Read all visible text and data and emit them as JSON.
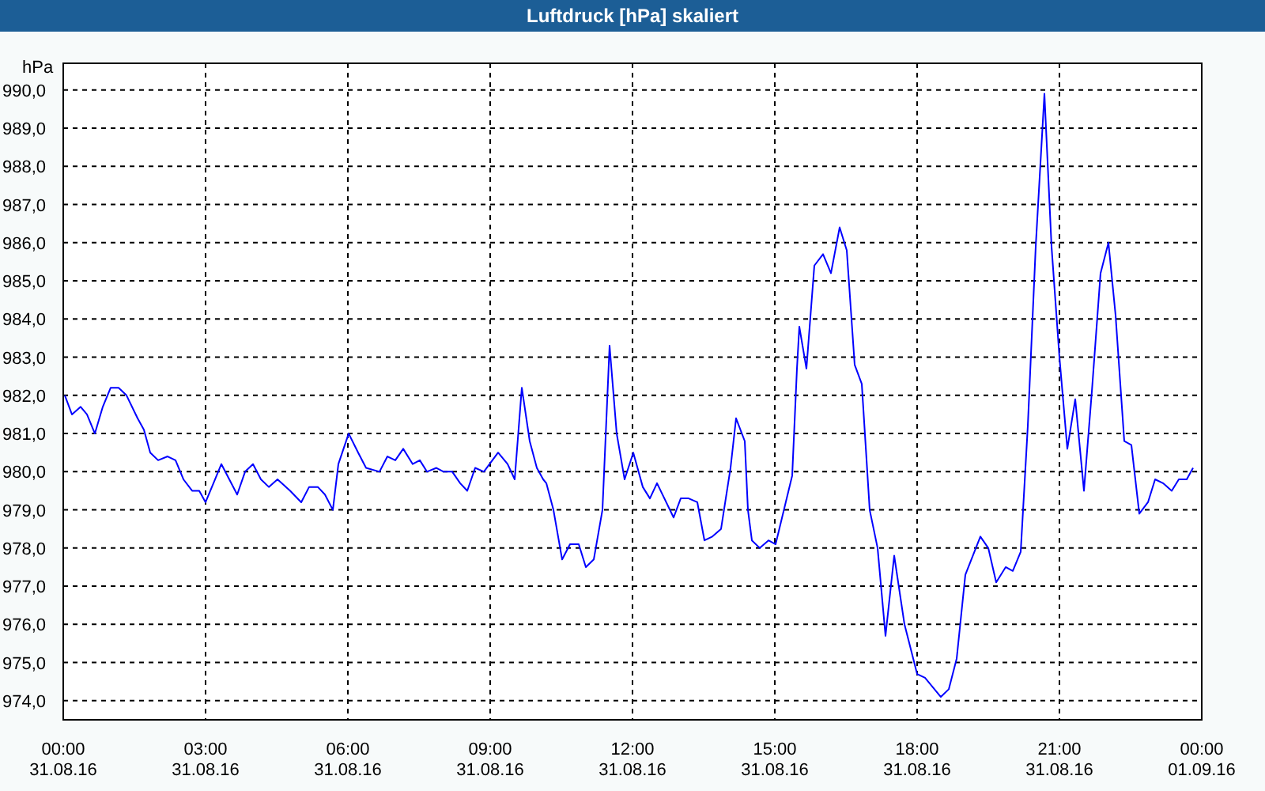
{
  "chart_data": {
    "type": "line",
    "title": "Luftdruck [hPa] skaliert",
    "ylabel": "hPa",
    "xlim": [
      "--08-31T00:00",
      "--09-01T00:00"
    ],
    "xticks": [
      {
        "value": "--08-31T00:00",
        "label": "00:00\n31.08.16"
      },
      {
        "value": "--08-31T03:00",
        "label": "03:00\n31.08.16"
      },
      {
        "value": "--08-31T06:00",
        "label": "06:00\n31.08.16"
      },
      {
        "value": "--08-31T09:00",
        "label": "09:00\n31.08.16"
      },
      {
        "value": "--08-31T12:00",
        "label": "12:00\n31.08.16"
      },
      {
        "value": "--08-31T15:00",
        "label": "15:00\n31.08.16"
      },
      {
        "value": "--08-31T18:00",
        "label": "18:00\n31.08.16"
      },
      {
        "value": "--08-31T21:00",
        "label": "21:00\n31.08.16"
      },
      {
        "value": "--09-01T00:00",
        "label": "00:00\n01.09.16"
      }
    ],
    "ylim": [
      973.5,
      990.7
    ],
    "yticks": [
      {
        "value": 974,
        "label": "974,0"
      },
      {
        "value": 975,
        "label": "975,0"
      },
      {
        "value": 976,
        "label": "976,0"
      },
      {
        "value": 977,
        "label": "977,0"
      },
      {
        "value": 978,
        "label": "978,0"
      },
      {
        "value": 979,
        "label": "979,0"
      },
      {
        "value": 980,
        "label": "980,0"
      },
      {
        "value": 981,
        "label": "981,0"
      },
      {
        "value": 982,
        "label": "982,0"
      },
      {
        "value": 983,
        "label": "983,0"
      },
      {
        "value": 984,
        "label": "984,0"
      },
      {
        "value": 985,
        "label": "985,0"
      },
      {
        "value": 986,
        "label": "986,0"
      },
      {
        "value": 987,
        "label": "987,0"
      },
      {
        "value": 988,
        "label": "988,0"
      },
      {
        "value": 989,
        "label": "989,0"
      },
      {
        "value": 990,
        "label": "990,0"
      }
    ],
    "grid": true,
    "series": [
      {
        "color": "#0000ff",
        "x": [
          "--08-31T00:02",
          "--08-31T00:11",
          "--08-31T00:22",
          "--08-31T00:30",
          "--08-31T00:40",
          "--08-31T00:50",
          "--08-31T01:00",
          "--08-31T01:10",
          "--08-31T01:20",
          "--08-31T01:34",
          "--08-31T01:42",
          "--08-31T01:50",
          "--08-31T02:00",
          "--08-31T02:12",
          "--08-31T02:22",
          "--08-31T02:32",
          "--08-31T02:43",
          "--08-31T02:52",
          "--08-31T03:00",
          "--08-31T03:10",
          "--08-31T03:20",
          "--08-31T03:30",
          "--08-31T03:40",
          "--08-31T03:50",
          "--08-31T04:00",
          "--08-31T04:10",
          "--08-31T04:20",
          "--08-31T04:31",
          "--08-31T04:47",
          "--08-31T05:01",
          "--08-31T05:11",
          "--08-31T05:22",
          "--08-31T05:31",
          "--08-31T05:41",
          "--08-31T05:48",
          "--08-31T06:01",
          "--08-31T06:13",
          "--08-31T06:23",
          "--08-31T06:40",
          "--08-31T06:50",
          "--08-31T07:00",
          "--08-31T07:10",
          "--08-31T07:22",
          "--08-31T07:31",
          "--08-31T07:40",
          "--08-31T07:52",
          "--08-31T08:01",
          "--08-31T08:12",
          "--08-31T08:22",
          "--08-31T08:31",
          "--08-31T08:41",
          "--08-31T08:52",
          "--08-31T09:10",
          "--08-31T09:22",
          "--08-31T09:31",
          "--08-31T09:40",
          "--08-31T09:50",
          "--08-31T09:59",
          "--08-31T10:07",
          "--08-31T10:11",
          "--08-31T10:20",
          "--08-31T10:31",
          "--08-31T10:41",
          "--08-31T10:52",
          "--08-31T11:01",
          "--08-31T11:11",
          "--08-31T11:22",
          "--08-31T11:31",
          "--08-31T11:40",
          "--08-31T11:50",
          "--08-31T12:01",
          "--08-31T12:13",
          "--08-31T12:22",
          "--08-31T12:31",
          "--08-31T12:52",
          "--08-31T13:01",
          "--08-31T13:11",
          "--08-31T13:22",
          "--08-31T13:31",
          "--08-31T13:41",
          "--08-31T13:52",
          "--08-31T14:04",
          "--08-31T14:11",
          "--08-31T14:22",
          "--08-31T14:26",
          "--08-31T14:31",
          "--08-31T14:41",
          "--08-31T14:52",
          "--08-31T15:01",
          "--08-31T15:22",
          "--08-31T15:28",
          "--08-31T15:31",
          "--08-31T15:40",
          "--08-31T15:50",
          "--08-31T16:01",
          "--08-31T16:11",
          "--08-31T16:22",
          "--08-31T16:31",
          "--08-31T16:41",
          "--08-31T16:50",
          "--08-31T17:00",
          "--08-31T17:10",
          "--08-31T17:20",
          "--08-31T17:31",
          "--08-31T17:44",
          "--08-31T18:00",
          "--08-31T18:10",
          "--08-31T18:30",
          "--08-31T18:40",
          "--08-31T18:50",
          "--08-31T19:01",
          "--08-31T19:20",
          "--08-31T19:30",
          "--08-31T19:40",
          "--08-31T19:52",
          "--08-31T20:01",
          "--08-31T20:11",
          "--08-31T20:20",
          "--08-31T20:30",
          "--08-31T20:41",
          "--08-31T20:50",
          "--08-31T21:00",
          "--08-31T21:10",
          "--08-31T21:20",
          "--08-31T21:31",
          "--08-31T21:41",
          "--08-31T21:52",
          "--08-31T22:02",
          "--08-31T22:11",
          "--08-31T22:22",
          "--08-31T22:31",
          "--08-31T22:41",
          "--08-31T22:52",
          "--08-31T23:01",
          "--08-31T23:11",
          "--08-31T23:22",
          "--08-31T23:31",
          "--08-31T23:41",
          "--08-31T23:49"
        ],
        "values": [
          982.0,
          981.5,
          981.7,
          981.5,
          981.0,
          981.7,
          982.2,
          982.2,
          982.0,
          981.4,
          981.1,
          980.5,
          980.3,
          980.4,
          980.3,
          979.8,
          979.5,
          979.5,
          979.2,
          979.7,
          980.2,
          979.8,
          979.4,
          980.0,
          980.2,
          979.8,
          979.6,
          979.8,
          979.5,
          979.2,
          979.6,
          979.6,
          979.4,
          979.0,
          980.2,
          981.0,
          980.5,
          980.1,
          980.0,
          980.4,
          980.3,
          980.6,
          980.2,
          980.3,
          980.0,
          980.1,
          980.0,
          980.0,
          979.7,
          979.5,
          980.1,
          980.0,
          980.5,
          980.2,
          979.8,
          982.2,
          980.8,
          980.1,
          979.8,
          979.7,
          979.0,
          977.7,
          978.1,
          978.1,
          977.5,
          977.7,
          979.0,
          983.3,
          981.0,
          979.8,
          980.5,
          979.6,
          979.3,
          979.7,
          978.8,
          979.3,
          979.3,
          979.2,
          978.2,
          978.3,
          978.5,
          980.1,
          981.4,
          980.8,
          979.0,
          978.2,
          978.0,
          978.2,
          978.1,
          979.9,
          982.7,
          983.8,
          982.7,
          985.4,
          985.7,
          985.2,
          986.4,
          985.8,
          982.8,
          982.3,
          979.0,
          978.0,
          975.7,
          977.8,
          976.0,
          974.7,
          974.6,
          974.1,
          974.3,
          975.1,
          977.3,
          978.3,
          978.0,
          977.1,
          977.5,
          977.4,
          977.9,
          981.2,
          985.9,
          989.9,
          985.9,
          983.0,
          980.6,
          981.9,
          979.5,
          982.1,
          985.2,
          986.0,
          984.1,
          980.8,
          980.7,
          978.9,
          979.2,
          979.8,
          979.7,
          979.5,
          979.8,
          979.8,
          980.1
        ]
      }
    ]
  }
}
